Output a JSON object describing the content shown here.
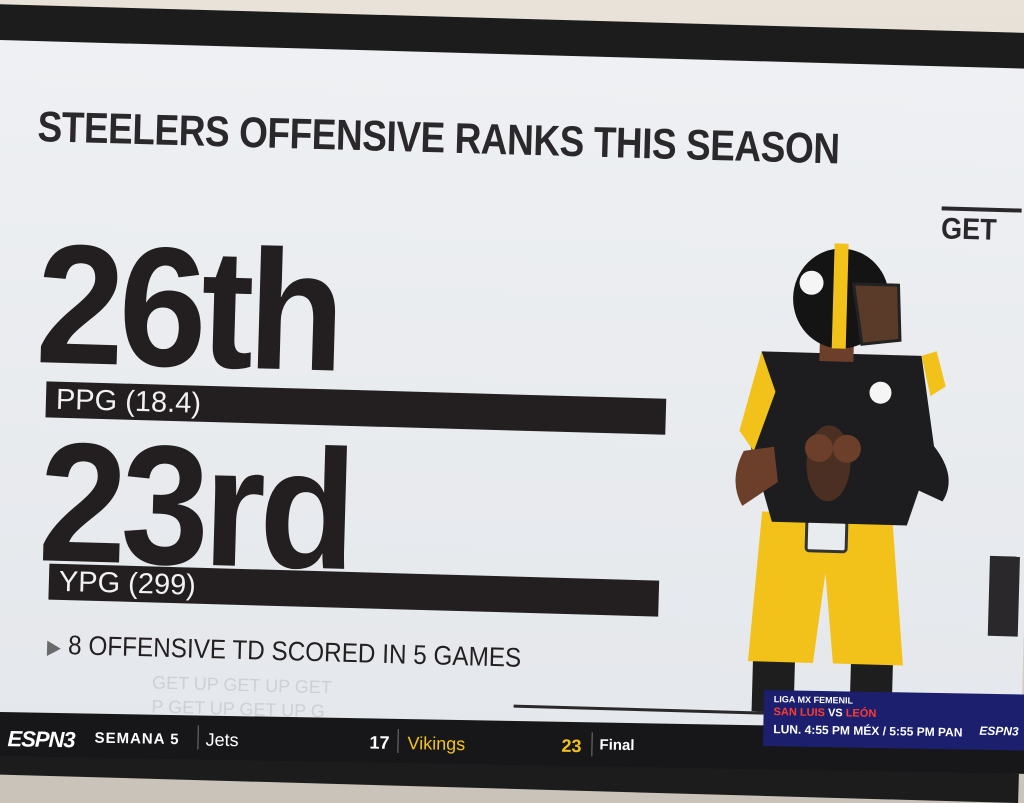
{
  "headline": "STEELERS OFFENSIVE RANKS THIS SEASON",
  "logo": "GET",
  "stats": [
    {
      "rank": "26th",
      "label": "PPG (18.4)"
    },
    {
      "rank": "23rd",
      "label": "YPG (299)"
    }
  ],
  "note": "8 OFFENSIVE TD SCORED IN 5 GAMES",
  "ticker": {
    "network": "ESPN3",
    "week": "SEMANA 5",
    "team1": "Jets",
    "score1": "17",
    "team2": "Vikings",
    "score2": "23",
    "status": "Final"
  },
  "liga": {
    "league": "LIGA MX FEMENIL",
    "home": "SAN LUIS",
    "vs": "VS",
    "away": "LEÓN",
    "time": "LUN. 4:55 PM MÉX / 5:55 PM PAN",
    "network": "ESPN3"
  },
  "colors": {
    "ink": "#231f20",
    "gold": "#f2c21b",
    "screen": "#e9ecef",
    "ticker": "#17171a",
    "liga": "#1b1f6e"
  }
}
